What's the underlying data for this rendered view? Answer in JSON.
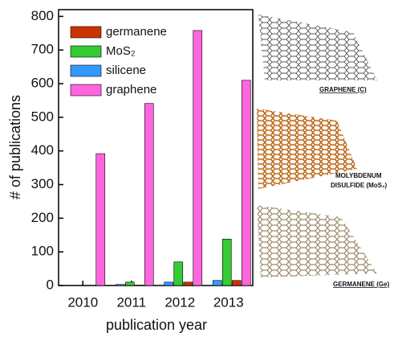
{
  "chart_data": {
    "type": "bar",
    "xlabel": "publication year",
    "ylabel": "# of publications",
    "categories": [
      "2010",
      "2011",
      "2012",
      "2013"
    ],
    "series": [
      {
        "name": "germanene",
        "color": "#cc3300",
        "values": [
          0,
          1,
          10,
          15
        ]
      },
      {
        "name": "MoS₂",
        "color": "#33cc33",
        "values": [
          0,
          10,
          70,
          138
        ]
      },
      {
        "name": "silicene",
        "color": "#3399ff",
        "values": [
          0,
          3,
          10,
          15
        ]
      },
      {
        "name": "graphene",
        "color": "#ff66dd",
        "values": [
          392,
          541,
          758,
          610
        ]
      }
    ],
    "ylim": [
      0,
      820
    ],
    "yticks": [
      0,
      100,
      200,
      300,
      400,
      500,
      600,
      700,
      800
    ],
    "annotations": [
      "GRAPHENE (C)",
      "MOLYBDENUM",
      "DISULFIDE (MoS₂)",
      "GERMANENE (Ge)"
    ]
  }
}
